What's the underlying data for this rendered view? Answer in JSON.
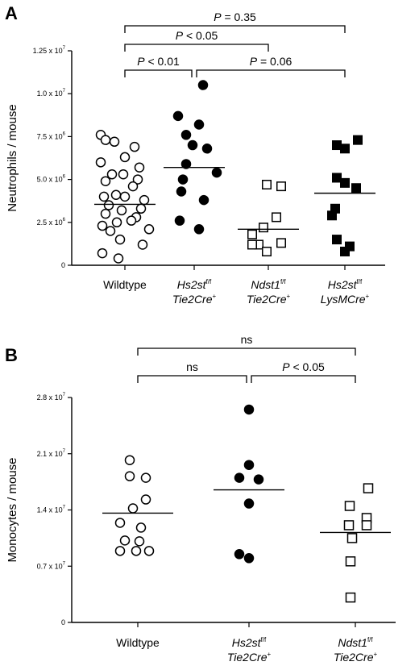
{
  "chart_data": [
    {
      "panel": "A",
      "type": "scatter",
      "ylabel": "Neutrophils / mouse",
      "ylim": [
        0,
        12500000
      ],
      "yticks": [
        {
          "value": 0,
          "label": "0"
        },
        {
          "value": 2500000,
          "label": "2.5 x 10^6"
        },
        {
          "value": 5000000,
          "label": "5.0 x 10^6"
        },
        {
          "value": 7500000,
          "label": "7.5 x 10^6"
        },
        {
          "value": 10000000,
          "label": "1.0 x 10^7"
        },
        {
          "value": 12500000,
          "label": "1.25 x 10^7"
        }
      ],
      "categories": [
        {
          "line1": "Wildtype",
          "line1_sup": "",
          "line2": "",
          "line2_sup": ""
        },
        {
          "line1": "Hs2st",
          "line1_sup": "f/f",
          "line2": "Tie2Cre",
          "line2_sup": "+"
        },
        {
          "line1": "Ndst1",
          "line1_sup": "f/f",
          "line2": "Tie2Cre",
          "line2_sup": "+"
        },
        {
          "line1": "Hs2st",
          "line1_sup": "f/f",
          "line2": "LysMCre",
          "line2_sup": "+"
        }
      ],
      "series": [
        {
          "marker": "open-circle",
          "mean": 3550000,
          "values": [
            7600000,
            7200000,
            6900000,
            7300000,
            6300000,
            6000000,
            5700000,
            5300000,
            5000000,
            5300000,
            4900000,
            4600000,
            4000000,
            4100000,
            3800000,
            4000000,
            3500000,
            3200000,
            3300000,
            3000000,
            2800000,
            2500000,
            2600000,
            2300000,
            2000000,
            2100000,
            1500000,
            1200000,
            700000,
            400000
          ]
        },
        {
          "marker": "filled-circle",
          "mean": 5700000,
          "values": [
            10500000,
            8700000,
            8200000,
            7600000,
            7000000,
            6800000,
            5900000,
            5400000,
            5000000,
            4300000,
            3800000,
            2600000,
            2100000
          ]
        },
        {
          "marker": "open-square",
          "mean": 2100000,
          "values": [
            4600000,
            4700000,
            2800000,
            2200000,
            1800000,
            1300000,
            1200000,
            1200000,
            800000
          ]
        },
        {
          "marker": "filled-square",
          "mean": 4200000,
          "values": [
            7300000,
            7000000,
            6800000,
            5100000,
            4800000,
            4500000,
            3300000,
            2900000,
            1500000,
            1100000,
            800000
          ]
        }
      ],
      "significance": [
        {
          "from": 0,
          "to": 3,
          "label_prefix": "P",
          "label_rest": " = 0.35",
          "level": 3
        },
        {
          "from": 0,
          "to": 2,
          "label_prefix": "P",
          "label_rest": " < 0.05",
          "level": 2
        },
        {
          "from": 0,
          "to": 1,
          "label_prefix": "P",
          "label_rest": " < 0.01",
          "level": 1
        },
        {
          "from": 1,
          "to": 3,
          "label_prefix": "P",
          "label_rest": " = 0.06",
          "level": 1
        }
      ]
    },
    {
      "panel": "B",
      "type": "scatter",
      "ylabel": "Monocytes / mouse",
      "ylim": [
        0,
        28000000
      ],
      "yticks": [
        {
          "value": 0,
          "label": "0"
        },
        {
          "value": 7000000,
          "label": "0.7 x 10^7"
        },
        {
          "value": 14000000,
          "label": "1.4 x 10^7"
        },
        {
          "value": 21000000,
          "label": "2.1 x 10^7"
        },
        {
          "value": 28000000,
          "label": "2.8 x 10^7"
        }
      ],
      "categories": [
        {
          "line1": "Wildtype",
          "line1_sup": "",
          "line2": "",
          "line2_sup": ""
        },
        {
          "line1": "Hs2st",
          "line1_sup": "f/f",
          "line2": "Tie2Cre",
          "line2_sup": "+"
        },
        {
          "line1": "Ndst1",
          "line1_sup": "f/f",
          "line2": "Tie2Cre",
          "line2_sup": "+"
        }
      ],
      "series": [
        {
          "marker": "open-circle",
          "mean": 13600000,
          "values": [
            20200000,
            18200000,
            18000000,
            15300000,
            14200000,
            12400000,
            11800000,
            10200000,
            10100000,
            8900000,
            8900000,
            8900000
          ]
        },
        {
          "marker": "filled-circle",
          "mean": 16500000,
          "values": [
            26500000,
            19600000,
            18000000,
            17800000,
            14800000,
            8500000,
            8000000
          ]
        },
        {
          "marker": "open-square",
          "mean": 11200000,
          "values": [
            16700000,
            14500000,
            13000000,
            12100000,
            12100000,
            10500000,
            7600000,
            3100000
          ]
        }
      ],
      "significance": [
        {
          "from": 0,
          "to": 2,
          "label_prefix": "",
          "label_rest": "ns",
          "level": 2
        },
        {
          "from": 0,
          "to": 1,
          "label_prefix": "",
          "label_rest": "ns",
          "level": 1
        },
        {
          "from": 1,
          "to": 2,
          "label_prefix": "P",
          "label_rest": " < 0.05",
          "level": 1
        }
      ]
    }
  ]
}
